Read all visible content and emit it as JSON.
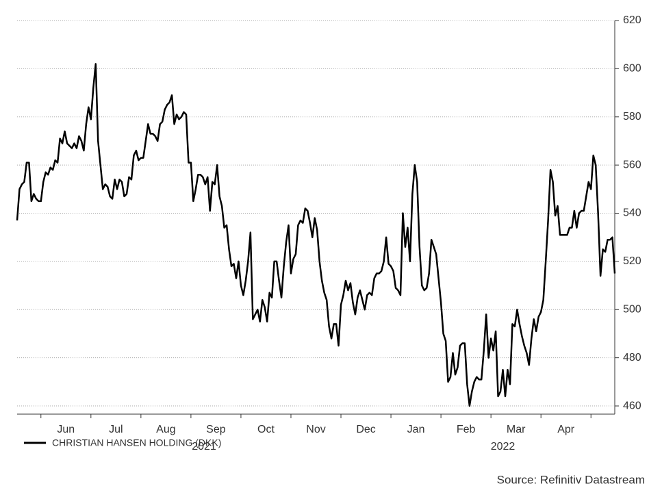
{
  "chart_data": {
    "type": "line",
    "series": [
      {
        "name": "CHRISTIAN HANSEN HOLDING (DKK)",
        "color": "#000000",
        "values": [
          537,
          550,
          552,
          553,
          561,
          561,
          545,
          548,
          546,
          545,
          545,
          553,
          557,
          556,
          559,
          558,
          562,
          561,
          571,
          569,
          574,
          569,
          568,
          567,
          569,
          567,
          572,
          570,
          566,
          577,
          584,
          579,
          592,
          602,
          570,
          560,
          550,
          552,
          551,
          547,
          546,
          554,
          550,
          554,
          553,
          547,
          548,
          555,
          554,
          564,
          566,
          562,
          563,
          563,
          570,
          577,
          573,
          573,
          572,
          570,
          577,
          578,
          583,
          585,
          586,
          589,
          577,
          581,
          579,
          580,
          582,
          581,
          561,
          561,
          545,
          550,
          556,
          556,
          555,
          552,
          555,
          541,
          553,
          552,
          560,
          547,
          543,
          534,
          535,
          525,
          518,
          519,
          513,
          520,
          510,
          506,
          512,
          520,
          532,
          496,
          498,
          500,
          495,
          504,
          501,
          495,
          507,
          505,
          520,
          520,
          512,
          505,
          518,
          528,
          535,
          515,
          521,
          523,
          535,
          537,
          536,
          542,
          541,
          536,
          530,
          538,
          533,
          520,
          512,
          507,
          504,
          493,
          488,
          494,
          494,
          485,
          502,
          506,
          512,
          508,
          511,
          503,
          498,
          505,
          508,
          504,
          500,
          506,
          507,
          506,
          513,
          515,
          515,
          516,
          520,
          530,
          519,
          518,
          516,
          509,
          508,
          506,
          540,
          526,
          534,
          520,
          548,
          560,
          553,
          526,
          510,
          508,
          509,
          515,
          529,
          526,
          523,
          513,
          503,
          490,
          487,
          470,
          472,
          482,
          473,
          476,
          485,
          486,
          486,
          469,
          460,
          466,
          470,
          472,
          471,
          471,
          483,
          498,
          480,
          488,
          483,
          491,
          464,
          466,
          475,
          464,
          475,
          469,
          494,
          493,
          500,
          494,
          489,
          485,
          482,
          477,
          488,
          496,
          491,
          497,
          499,
          504,
          520,
          537,
          558,
          553,
          539,
          543,
          531,
          531,
          531,
          531,
          534,
          534,
          541,
          534,
          540,
          541,
          541,
          547,
          553,
          550,
          564,
          560,
          540,
          514,
          525,
          524,
          529,
          529,
          530,
          515
        ]
      }
    ],
    "categories": [
      null,
      null,
      null,
      null,
      null,
      null,
      null,
      null,
      null,
      null,
      "Jun",
      null,
      null,
      null,
      null,
      null,
      null,
      null,
      null,
      null,
      null,
      null,
      null,
      null,
      null,
      null,
      null,
      null,
      null,
      null,
      null,
      "Jul",
      null,
      null,
      null,
      null,
      null,
      null,
      null,
      null,
      null,
      null,
      null,
      null,
      null,
      null,
      null,
      null,
      null,
      null,
      null,
      null,
      "Aug",
      null,
      null,
      null,
      null,
      null,
      null,
      null,
      null,
      null,
      null,
      null,
      null,
      null,
      null,
      null,
      null,
      null,
      null,
      null,
      null,
      "Sep",
      null,
      null,
      null,
      null,
      null,
      null,
      null,
      null,
      null,
      null,
      null,
      null,
      null,
      null,
      null,
      null,
      null,
      null,
      null,
      null,
      "Oct",
      null,
      null,
      null,
      null,
      null,
      null,
      null,
      null,
      null,
      null,
      null,
      null,
      null,
      null,
      null,
      null,
      null,
      null,
      null,
      null,
      "Nov",
      null,
      null,
      null,
      null,
      null,
      null,
      null,
      null,
      null,
      null,
      null,
      null,
      null,
      null,
      null,
      null,
      null,
      null,
      null,
      null,
      "Dec",
      null,
      null,
      null,
      null,
      null,
      null,
      null,
      null,
      null,
      null,
      null,
      null,
      null,
      null,
      null,
      null,
      null,
      null,
      null,
      null,
      "Jan",
      null,
      null,
      null,
      null,
      null,
      null,
      null,
      null,
      null,
      null,
      null,
      null,
      null,
      null,
      null,
      null,
      null,
      null,
      null,
      null,
      "Feb",
      null,
      null,
      null,
      null,
      null,
      null,
      null,
      null,
      null,
      null,
      null,
      null,
      null,
      null,
      null,
      null,
      null,
      null,
      null,
      null,
      "Mar",
      null,
      null,
      null,
      null,
      null,
      null,
      null,
      null,
      null,
      null,
      null,
      null,
      null,
      null,
      null,
      null,
      null,
      null,
      null,
      null,
      "Apr",
      null,
      null,
      null,
      null,
      null,
      null,
      null,
      null,
      null,
      null,
      null,
      null,
      null,
      null,
      null,
      null,
      null,
      null,
      null,
      null,
      "",
      null,
      null,
      null,
      null,
      null,
      null,
      null,
      null,
      null,
      null
    ],
    "years": [
      "2021",
      "2022"
    ],
    "ylim": [
      456.6,
      620
    ],
    "yticks": [
      460,
      480,
      500,
      520,
      540,
      560,
      580,
      600,
      620
    ],
    "grid": true,
    "source": "Source: Refinitiv Datastream"
  }
}
